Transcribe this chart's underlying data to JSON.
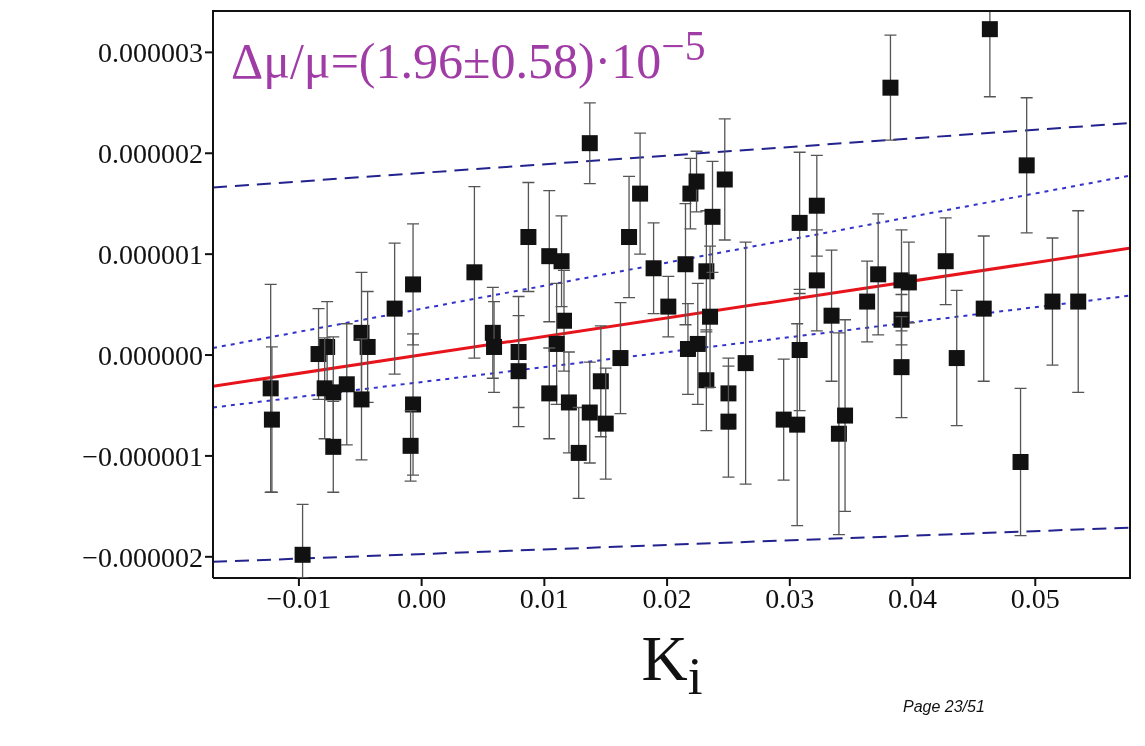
{
  "chart_data": {
    "type": "scatter",
    "xlabel": "K$_{i}$",
    "annotations": [
      "Δμ/μ=(1.96±0.58)·10$^{−5}$",
      "Page 23/51"
    ],
    "xlim": [
      -0.017,
      0.0578
    ],
    "ylim": [
      -2.21e-06,
      3.42e-06
    ],
    "xticks": [
      {
        "value": -0.01,
        "label": "−0.01"
      },
      {
        "value": 0,
        "label": "0.00"
      },
      {
        "value": 0.01,
        "label": "0.01"
      },
      {
        "value": 0.02,
        "label": "0.02"
      },
      {
        "value": 0.03,
        "label": "0.03"
      },
      {
        "value": 0.04,
        "label": "0.04"
      },
      {
        "value": 0.05,
        "label": "0.05"
      }
    ],
    "yticks": [
      {
        "value": -2e-06,
        "label": "−0.000002"
      },
      {
        "value": -1e-06,
        "label": "−0.000001"
      },
      {
        "value": 0,
        "label": "0.000000"
      },
      {
        "value": 1e-06,
        "label": "0.000001"
      },
      {
        "value": 2e-06,
        "label": "0.000002"
      },
      {
        "value": 3e-06,
        "label": "0.000003"
      }
    ],
    "grid": false,
    "legend": false,
    "marker": "square",
    "series": [
      {
        "color": "#111111",
        "x": [
          -0.0123,
          -0.0122,
          -0.0097,
          -0.0084,
          -0.0077,
          -0.0079,
          -0.0072,
          -0.0072,
          -0.0061,
          -0.0049,
          -0.0044,
          -0.0049,
          -0.0022,
          -0.0007,
          -0.0007,
          -0.0009,
          0.0043,
          0.0058,
          0.0059,
          0.0079,
          0.0079,
          0.0087,
          0.0104,
          0.0114,
          0.0116,
          0.011,
          0.0104,
          0.012,
          0.0137,
          0.0128,
          0.0137,
          0.0146,
          0.015,
          0.0162,
          0.0169,
          0.0178,
          0.0189,
          0.0201,
          0.0215,
          0.0217,
          0.0219,
          0.0224,
          0.0225,
          0.0232,
          0.0232,
          0.0235,
          0.0237,
          0.0247,
          0.025,
          0.025,
          0.0264,
          0.0295,
          0.0306,
          0.0308,
          0.0308,
          0.0322,
          0.0322,
          0.0334,
          0.034,
          0.0345,
          0.0363,
          0.0372,
          0.0391,
          0.0397,
          0.0391,
          0.0391,
          0.0382,
          0.0427,
          0.0436,
          0.0458,
          0.0463,
          0.0493,
          0.0488,
          0.0514,
          0.0535
        ],
        "values": [
          -3.3e-07,
          -6.4e-07,
          -1.98e-06,
          1e-08,
          8e-08,
          -3.3e-07,
          -3.7e-07,
          -9.1e-07,
          -2.9e-07,
          2.2e-07,
          8e-08,
          -4.4e-07,
          4.6e-07,
          7e-07,
          -4.9e-07,
          -9e-07,
          8.2e-07,
          2.2e-07,
          8e-08,
          3e-08,
          -1.6e-07,
          1.17e-06,
          9.8e-07,
          9.3e-07,
          3.4e-07,
          1.1e-07,
          -3.8e-07,
          -4.7e-07,
          2.1e-06,
          -9.7e-07,
          -5.7e-07,
          -2.6e-07,
          -6.8e-07,
          -3e-08,
          1.17e-06,
          1.6e-06,
          8.6e-07,
          4.8e-07,
          9e-07,
          6e-08,
          1.6e-06,
          1.72e-06,
          1.1e-07,
          8.3e-07,
          -2.5e-07,
          3.8e-07,
          1.37e-06,
          1.74e-06,
          -3.8e-07,
          -6.6e-07,
          -8e-08,
          -6.4e-07,
          -6.9e-07,
          5e-08,
          1.31e-06,
          1.48e-06,
          7.4e-07,
          3.9e-07,
          -7.8e-07,
          -6e-07,
          5.3e-07,
          8e-07,
          7.4e-07,
          7.2e-07,
          3.5e-07,
          -1.2e-07,
          2.65e-06,
          9.3e-07,
          -3e-08,
          4.6e-07,
          3.23e-06,
          1.88e-06,
          -1.06e-06,
          5.3e-07,
          5.3e-07
        ],
        "errors": [
          1.03e-06,
          7.2e-07,
          [
            -2.21e-06,
            -1.48e-06
          ],
          4.5e-07,
          4.5e-07,
          5e-07,
          5.5e-07,
          4.5e-07,
          6e-07,
          6e-07,
          5.5e-07,
          6e-07,
          6.5e-07,
          6e-07,
          7e-07,
          3.5e-07,
          8.5e-07,
          4.5e-07,
          4.5e-07,
          5.5e-07,
          5.5e-07,
          5.4e-07,
          6.5e-07,
          4.5e-07,
          5e-07,
          6e-07,
          4.5e-07,
          5e-07,
          4e-07,
          4.5e-07,
          5e-07,
          5.5e-07,
          5.5e-07,
          5.5e-07,
          6e-07,
          6e-07,
          4.5e-07,
          3e-07,
          6e-07,
          4.5e-07,
          3.5e-07,
          3e-07,
          6e-07,
          6e-07,
          5e-07,
          7e-07,
          5.5e-07,
          6e-07,
          3.5e-07,
          5.5e-07,
          1.2e-06,
          6e-07,
          1e-06,
          6e-07,
          7e-07,
          5e-07,
          5e-07,
          6.5e-07,
          1e-06,
          9.5e-07,
          4e-07,
          6e-07,
          5e-07,
          4e-07,
          2.5e-07,
          5e-07,
          5.2e-07,
          4.3e-07,
          6.7e-07,
          7.2e-07,
          [
            2.56e-06,
            3.42e-06
          ],
          6.7e-07,
          7.3e-07,
          6.3e-07,
          9e-07
        ]
      },
      {
        "type": "line",
        "color": "#e8141c",
        "line_style": "solid",
        "marker": "none",
        "x": [
          -0.017,
          0.0578
        ],
        "values": [
          -3.1e-07,
          1.06e-06
        ]
      },
      {
        "type": "line",
        "color": "#23238f",
        "line_style": "dashed",
        "marker": "none",
        "x": [
          -0.017,
          0.0578
        ],
        "values": [
          1.66e-06,
          2.3e-06
        ]
      },
      {
        "type": "line",
        "color": "#23238f",
        "line_style": "dashed",
        "marker": "none",
        "x": [
          -0.017,
          0.0578
        ],
        "values": [
          -2.05e-06,
          -1.71e-06
        ]
      },
      {
        "type": "line",
        "color": "#3333cc",
        "line_style": "dotted",
        "marker": "none",
        "x": [
          -0.017,
          0.0578
        ],
        "values": [
          7e-08,
          1.78e-06
        ]
      },
      {
        "type": "line",
        "color": "#3333cc",
        "line_style": "dotted",
        "marker": "none",
        "x": [
          -0.017,
          0.0578
        ],
        "values": [
          -5.2e-07,
          5.9e-07
        ]
      }
    ]
  }
}
